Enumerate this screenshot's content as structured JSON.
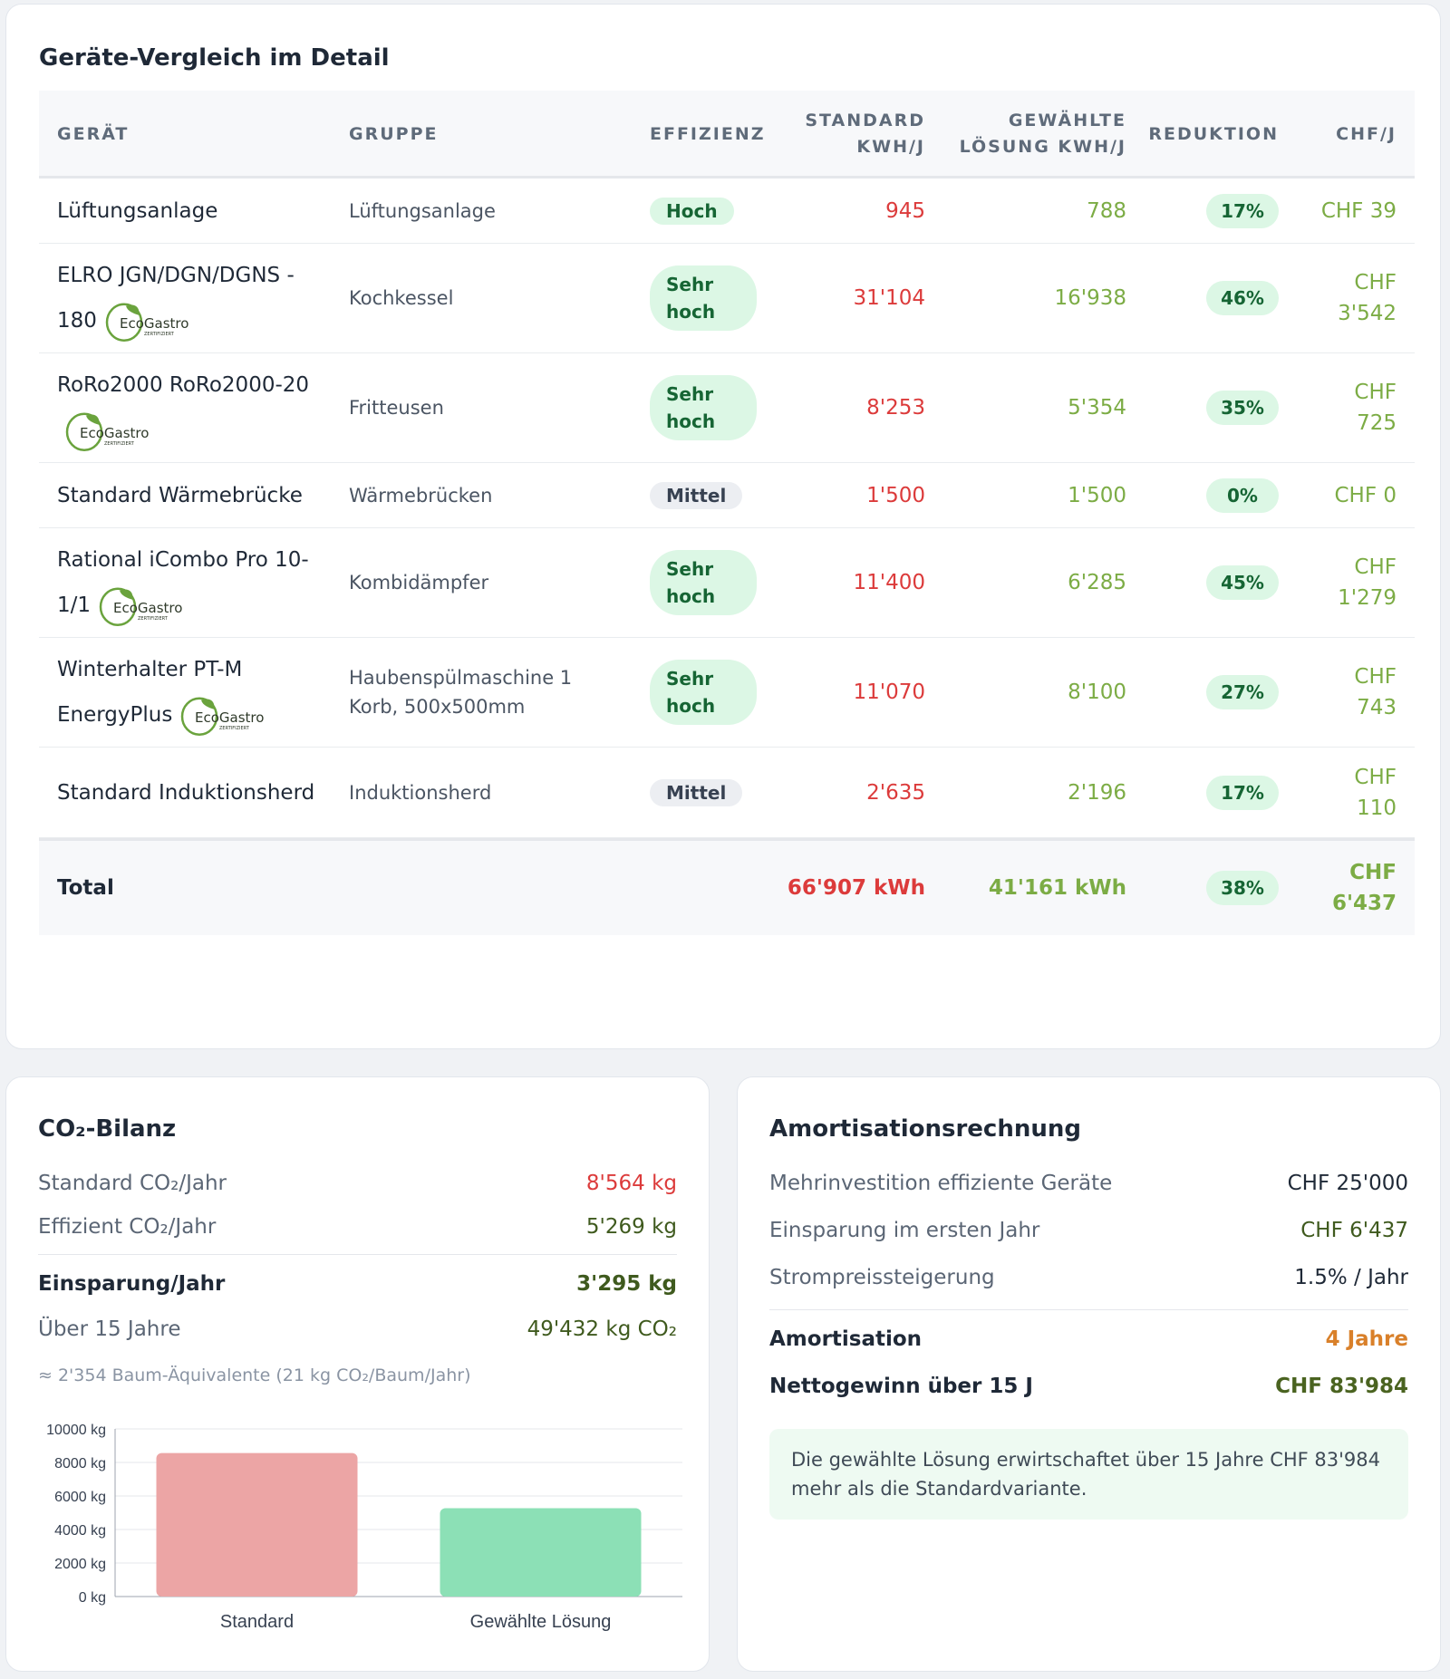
{
  "comparison": {
    "title": "Geräte-Vergleich im Detail",
    "headers": {
      "device": "GERÄT",
      "group": "GRUPPE",
      "efficiency": "EFFIZIENZ",
      "standard_line1": "STANDARD",
      "standard_line2": "KWH/J",
      "chosen_line1": "GEWÄHLTE",
      "chosen_line2": "LÖSUNG KWH/J",
      "reduction": "REDUKTION",
      "chf": "CHF/J"
    },
    "rows": [
      {
        "device": "Lüftungsanlage",
        "eco": false,
        "group": "Lüftungsanlage",
        "efficiency": "Hoch",
        "standard": "945",
        "chosen": "788",
        "reduction": "17%",
        "chf": "CHF 39"
      },
      {
        "device": "ELRO JGN/DGN/DGNS - 180",
        "eco": true,
        "group": "Kochkessel",
        "efficiency": "Sehr hoch",
        "standard": "31'104",
        "chosen": "16'938",
        "reduction": "46%",
        "chf": "CHF 3'542"
      },
      {
        "device": "RoRo2000 RoRo2000-20",
        "eco": true,
        "group": "Fritteusen",
        "efficiency": "Sehr hoch",
        "standard": "8'253",
        "chosen": "5'354",
        "reduction": "35%",
        "chf": "CHF 725"
      },
      {
        "device": "Standard Wärmebrücke",
        "eco": false,
        "group": "Wärmebrücken",
        "efficiency": "Mittel",
        "standard": "1'500",
        "chosen": "1'500",
        "reduction": "0%",
        "chf": "CHF 0"
      },
      {
        "device": "Rational iCombo Pro 10-1/1",
        "eco": true,
        "group": "Kombidämpfer",
        "efficiency": "Sehr hoch",
        "standard": "11'400",
        "chosen": "6'285",
        "reduction": "45%",
        "chf": "CHF 1'279"
      },
      {
        "device": "Winterhalter PT-M EnergyPlus",
        "eco": true,
        "group": "Haubenspülmaschine 1 Korb, 500x500mm",
        "efficiency": "Sehr hoch",
        "standard": "11'070",
        "chosen": "8'100",
        "reduction": "27%",
        "chf": "CHF 743"
      },
      {
        "device": "Standard Induktionsherd",
        "eco": false,
        "group": "Induktionsherd",
        "efficiency": "Mittel",
        "standard": "2'635",
        "chosen": "2'196",
        "reduction": "17%",
        "chf": "CHF 110"
      }
    ],
    "total": {
      "label": "Total",
      "standard": "66'907 kWh",
      "chosen": "41'161 kWh",
      "reduction": "38%",
      "chf": "CHF 6'437"
    },
    "eco_logo_text": "EcoGastro",
    "eco_logo_sub": "ZERTIFIZIERT"
  },
  "co2": {
    "title": "CO₂-Bilanz",
    "standard_label": "Standard CO₂/Jahr",
    "standard_value": "8'564 kg",
    "efficient_label": "Effizient CO₂/Jahr",
    "efficient_value": "5'269 kg",
    "savings_label": "Einsparung/Jahr",
    "savings_value": "3'295 kg",
    "over15_label": "Über 15 Jahre",
    "over15_value": "49'432 kg CO₂",
    "tree_note": "≈ 2'354 Baum-Äquivalente (21 kg CO₂/Baum/Jahr)",
    "colors": {
      "standard": "#eca5a5",
      "chosen": "#8ce0b6"
    }
  },
  "chart_data": {
    "type": "bar",
    "categories": [
      "Standard",
      "Gewählte Lösung"
    ],
    "values": [
      8564,
      5269
    ],
    "ylim": [
      0,
      10000
    ],
    "yticks": [
      "0 kg",
      "2000 kg",
      "4000 kg",
      "6000 kg",
      "8000 kg",
      "10000 kg"
    ],
    "ytick_values": [
      0,
      2000,
      4000,
      6000,
      8000,
      10000
    ],
    "grid": true
  },
  "amortisation": {
    "title": "Amortisationsrechnung",
    "extra_invest_label": "Mehrinvestition effiziente Geräte",
    "extra_invest_value": "CHF 25'000",
    "first_year_label": "Einsparung im ersten Jahr",
    "first_year_value": "CHF 6'437",
    "price_increase_label": "Strompreissteigerung",
    "price_increase_value": "1.5% / Jahr",
    "amortisation_label": "Amortisation",
    "amortisation_value": "4 Jahre",
    "net_gain_label": "Nettogewinn über 15 J",
    "net_gain_value": "CHF 83'984",
    "info_text": "Die gewählte Lösung erwirtschaftet über 15 Jahre CHF 83'984 mehr als die Standardvariante.",
    "colors": {
      "amortisation": "#d9802a",
      "net_gain": "#4a6320"
    }
  }
}
